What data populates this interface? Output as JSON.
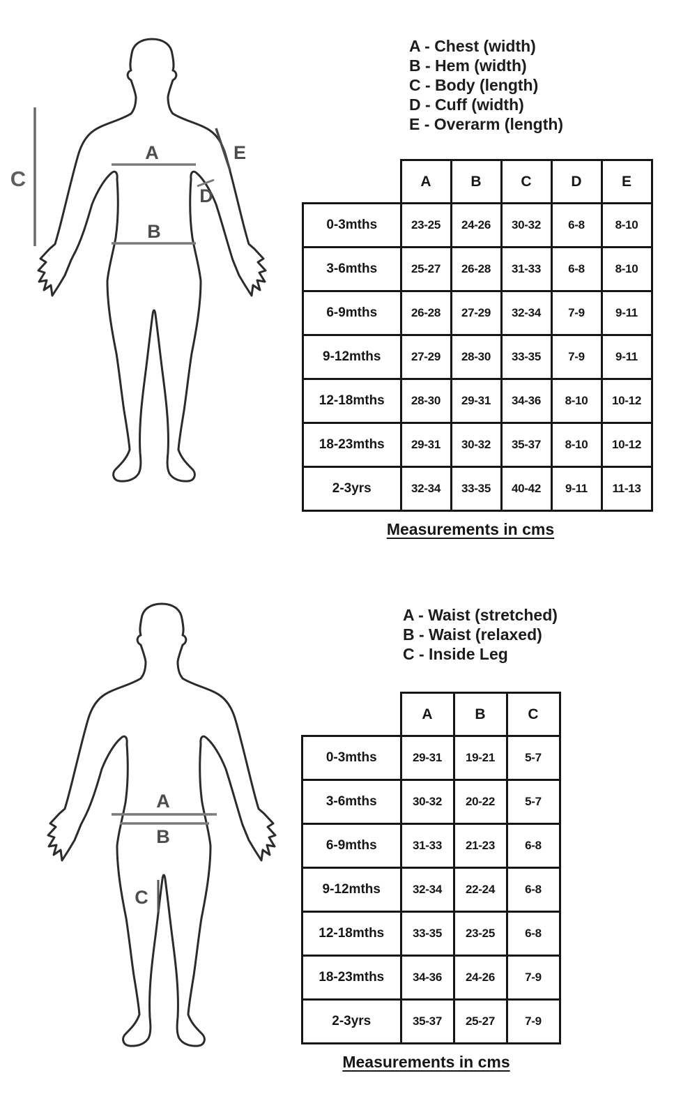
{
  "top_chart": {
    "legend": [
      "A - Chest (width)",
      "B - Hem (width)",
      "C - Body (length)",
      "D - Cuff (width)",
      "E - Overarm (length)"
    ],
    "figure_marks": [
      "A",
      "B",
      "C",
      "D",
      "E"
    ],
    "table": {
      "columns": [
        "A",
        "B",
        "C",
        "D",
        "E"
      ],
      "rows": [
        {
          "label": "0-3mths",
          "values": [
            "23-25",
            "24-26",
            "30-32",
            "6-8",
            "8-10"
          ]
        },
        {
          "label": "3-6mths",
          "values": [
            "25-27",
            "26-28",
            "31-33",
            "6-8",
            "8-10"
          ]
        },
        {
          "label": "6-9mths",
          "values": [
            "26-28",
            "27-29",
            "32-34",
            "7-9",
            "9-11"
          ]
        },
        {
          "label": "9-12mths",
          "values": [
            "27-29",
            "28-30",
            "33-35",
            "7-9",
            "9-11"
          ]
        },
        {
          "label": "12-18mths",
          "values": [
            "28-30",
            "29-31",
            "34-36",
            "8-10",
            "10-12"
          ]
        },
        {
          "label": "18-23mths",
          "values": [
            "29-31",
            "30-32",
            "35-37",
            "8-10",
            "10-12"
          ]
        },
        {
          "label": "2-3yrs",
          "values": [
            "32-34",
            "33-35",
            "40-42",
            "9-11",
            "11-13"
          ]
        }
      ]
    },
    "caption": "Measurements in cms"
  },
  "bottom_chart": {
    "legend": [
      "A - Waist (stretched)",
      "B - Waist (relaxed)",
      "C - Inside Leg"
    ],
    "figure_marks": [
      "A",
      "B",
      "C"
    ],
    "table": {
      "columns": [
        "A",
        "B",
        "C"
      ],
      "rows": [
        {
          "label": "0-3mths",
          "values": [
            "29-31",
            "19-21",
            "5-7"
          ]
        },
        {
          "label": "3-6mths",
          "values": [
            "30-32",
            "20-22",
            "5-7"
          ]
        },
        {
          "label": "6-9mths",
          "values": [
            "31-33",
            "21-23",
            "6-8"
          ]
        },
        {
          "label": "9-12mths",
          "values": [
            "32-34",
            "22-24",
            "6-8"
          ]
        },
        {
          "label": "12-18mths",
          "values": [
            "33-35",
            "23-25",
            "6-8"
          ]
        },
        {
          "label": "18-23mths",
          "values": [
            "34-36",
            "24-26",
            "7-9"
          ]
        },
        {
          "label": "2-3yrs",
          "values": [
            "35-37",
            "25-27",
            "7-9"
          ]
        }
      ]
    },
    "caption": "Measurements in cms"
  },
  "colors": {
    "background": "#ffffff",
    "body_outline": "#2b2b2b",
    "measure_line": "#7a7a7a",
    "mark_label": "#4d4d4d",
    "table_border": "#161616",
    "text": "#1a1a1a"
  }
}
